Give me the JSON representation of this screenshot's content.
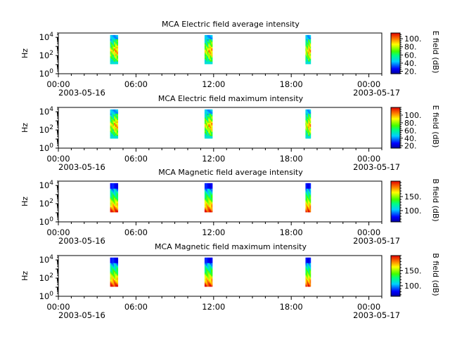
{
  "figure": {
    "x_ticks": [
      "00:00",
      "06:00",
      "12:00",
      "18:00",
      "00:00"
    ],
    "x_date_start": "2003-05-16",
    "x_date_end": "2003-05-17"
  },
  "chart_data": [
    {
      "type": "heatmap",
      "title": "MCA  Electric field average intensity",
      "ylabel": "Hz",
      "yscale": "log",
      "ylim": [
        1,
        30000
      ],
      "y_tick_labels": [
        "10^0",
        "10^2",
        "10^4"
      ],
      "xlim_hours": [
        0,
        25
      ],
      "colorbar": {
        "label": "E field (dB)",
        "ticks": [
          "20.",
          "40.",
          "60.",
          "80.",
          "100."
        ],
        "range": [
          14,
          114
        ]
      },
      "segments": [
        {
          "start_hour": 4.0,
          "end_hour": 4.6,
          "fmin": 12,
          "fmax": 18000
        },
        {
          "start_hour": 11.3,
          "end_hour": 11.9,
          "fmin": 12,
          "fmax": 18000
        },
        {
          "start_hour": 19.1,
          "end_hour": 19.5,
          "fmin": 12,
          "fmax": 18000
        }
      ]
    },
    {
      "type": "heatmap",
      "title": "MCA  Electric field maximum intensity",
      "ylabel": "Hz",
      "yscale": "log",
      "ylim": [
        1,
        30000
      ],
      "y_tick_labels": [
        "10^0",
        "10^2",
        "10^4"
      ],
      "xlim_hours": [
        0,
        25
      ],
      "colorbar": {
        "label": "E field (dB)",
        "ticks": [
          "20.",
          "40.",
          "60.",
          "80.",
          "100."
        ],
        "range": [
          14,
          120
        ]
      },
      "segments": [
        {
          "start_hour": 4.0,
          "end_hour": 4.6,
          "fmin": 12,
          "fmax": 18000
        },
        {
          "start_hour": 11.3,
          "end_hour": 11.9,
          "fmin": 12,
          "fmax": 18000
        },
        {
          "start_hour": 19.1,
          "end_hour": 19.5,
          "fmin": 12,
          "fmax": 18000
        }
      ]
    },
    {
      "type": "heatmap",
      "title": "MCA  Magnetic field average intensity",
      "ylabel": "Hz",
      "yscale": "log",
      "ylim": [
        1,
        30000
      ],
      "y_tick_labels": [
        "10^0",
        "10^2",
        "10^4"
      ],
      "xlim_hours": [
        0,
        25
      ],
      "colorbar": {
        "label": "B field (dB)",
        "ticks": [
          "100.",
          "150."
        ],
        "range": [
          60,
          205
        ]
      },
      "segments": [
        {
          "start_hour": 4.0,
          "end_hour": 4.6,
          "fmin": 12,
          "fmax": 18000
        },
        {
          "start_hour": 11.3,
          "end_hour": 11.9,
          "fmin": 12,
          "fmax": 18000
        },
        {
          "start_hour": 19.1,
          "end_hour": 19.5,
          "fmin": 12,
          "fmax": 18000
        }
      ]
    },
    {
      "type": "heatmap",
      "title": "MCA  Magnetic field maximum intensity",
      "ylabel": "Hz",
      "yscale": "log",
      "ylim": [
        1,
        30000
      ],
      "y_tick_labels": [
        "10^0",
        "10^2",
        "10^4"
      ],
      "xlim_hours": [
        0,
        25
      ],
      "colorbar": {
        "label": "B field (dB)",
        "ticks": [
          "100.",
          "150."
        ],
        "range": [
          65,
          200
        ]
      },
      "segments": [
        {
          "start_hour": 4.0,
          "end_hour": 4.6,
          "fmin": 12,
          "fmax": 18000
        },
        {
          "start_hour": 11.3,
          "end_hour": 11.9,
          "fmin": 12,
          "fmax": 18000
        },
        {
          "start_hour": 19.1,
          "end_hour": 19.5,
          "fmin": 12,
          "fmax": 18000
        }
      ]
    }
  ]
}
